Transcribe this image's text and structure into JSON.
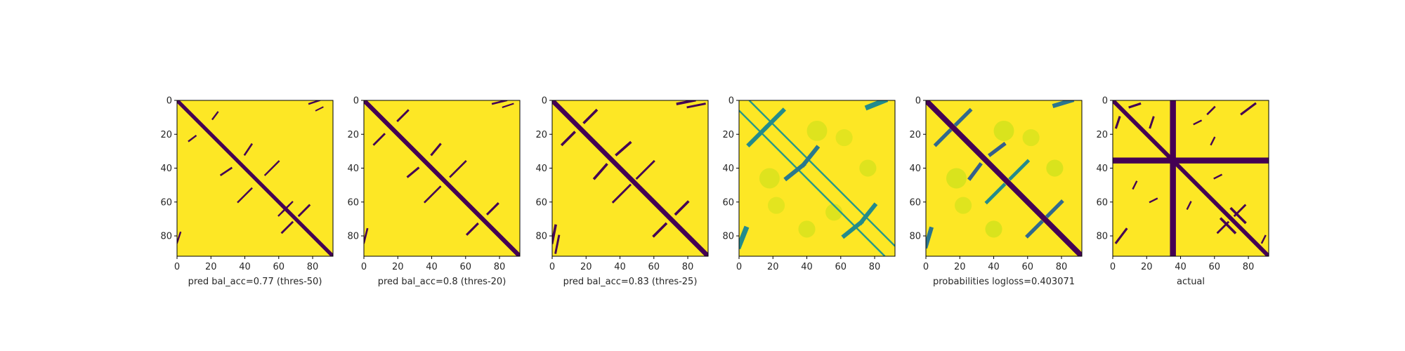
{
  "chart_data": [
    {
      "type": "heatmap",
      "kind": "binary",
      "xlabel": "pred bal_acc=0.77 (thres-50)",
      "xlim": [
        0,
        92
      ],
      "ylim": [
        92,
        0
      ],
      "xticks": [
        0,
        20,
        40,
        60,
        80
      ],
      "yticks": [
        0,
        20,
        40,
        60,
        80
      ],
      "colormap": "viridis",
      "low_color": "#440154",
      "high_color": "#fde725",
      "diagonal_width": 2.2,
      "streaks": [
        {
          "from": [
            21,
            11
          ],
          "to": [
            24,
            7
          ],
          "w": 1.0
        },
        {
          "from": [
            11,
            21
          ],
          "to": [
            7,
            24
          ],
          "w": 1.0
        },
        {
          "from": [
            40,
            32
          ],
          "to": [
            44,
            26
          ],
          "w": 1.1
        },
        {
          "from": [
            32,
            40
          ],
          "to": [
            26,
            44
          ],
          "w": 1.1
        },
        {
          "from": [
            44,
            52
          ],
          "to": [
            36,
            60
          ],
          "w": 1.0
        },
        {
          "from": [
            52,
            44
          ],
          "to": [
            60,
            36
          ],
          "w": 1.0
        },
        {
          "from": [
            66,
            62
          ],
          "to": [
            60,
            68
          ],
          "w": 1.0
        },
        {
          "from": [
            62,
            66
          ],
          "to": [
            68,
            60
          ],
          "w": 1.0
        },
        {
          "from": [
            72,
            68
          ],
          "to": [
            78,
            62
          ],
          "w": 1.2
        },
        {
          "from": [
            68,
            72
          ],
          "to": [
            62,
            78
          ],
          "w": 1.2
        },
        {
          "from": [
            78,
            2
          ],
          "to": [
            84,
            0
          ],
          "w": 1.0
        },
        {
          "from": [
            2,
            78
          ],
          "to": [
            0,
            84
          ],
          "w": 1.0
        },
        {
          "from": [
            82,
            6
          ],
          "to": [
            86,
            4
          ],
          "w": 0.8
        }
      ],
      "lines": []
    },
    {
      "type": "heatmap",
      "kind": "binary",
      "xlabel": "pred bal_acc=0.8 (thres-20)",
      "xlim": [
        0,
        92
      ],
      "ylim": [
        92,
        0
      ],
      "xticks": [
        0,
        20,
        40,
        60,
        80
      ],
      "yticks": [
        0,
        20,
        40,
        60,
        80
      ],
      "colormap": "viridis",
      "low_color": "#440154",
      "high_color": "#fde725",
      "diagonal_width": 2.6,
      "streaks": [
        {
          "from": [
            20,
            12
          ],
          "to": [
            26,
            6
          ],
          "w": 1.2
        },
        {
          "from": [
            12,
            20
          ],
          "to": [
            6,
            26
          ],
          "w": 1.2
        },
        {
          "from": [
            40,
            32
          ],
          "to": [
            45,
            26
          ],
          "w": 1.3
        },
        {
          "from": [
            32,
            40
          ],
          "to": [
            26,
            45
          ],
          "w": 1.3
        },
        {
          "from": [
            45,
            51
          ],
          "to": [
            36,
            60
          ],
          "w": 1.1
        },
        {
          "from": [
            51,
            45
          ],
          "to": [
            60,
            36
          ],
          "w": 1.1
        },
        {
          "from": [
            73,
            67
          ],
          "to": [
            79,
            61
          ],
          "w": 1.3
        },
        {
          "from": [
            67,
            73
          ],
          "to": [
            61,
            79
          ],
          "w": 1.3
        },
        {
          "from": [
            76,
            2
          ],
          "to": [
            84,
            0
          ],
          "w": 1.1
        },
        {
          "from": [
            2,
            76
          ],
          "to": [
            0,
            84
          ],
          "w": 1.1
        },
        {
          "from": [
            82,
            4
          ],
          "to": [
            88,
            2
          ],
          "w": 0.9
        }
      ],
      "lines": []
    },
    {
      "type": "heatmap",
      "kind": "binary",
      "xlabel": "pred bal_acc=0.83 (thres-25)",
      "xlim": [
        0,
        92
      ],
      "ylim": [
        92,
        0
      ],
      "xticks": [
        0,
        20,
        40,
        60,
        80
      ],
      "yticks": [
        0,
        20,
        40,
        60,
        80
      ],
      "colormap": "viridis",
      "low_color": "#440154",
      "high_color": "#fde725",
      "diagonal_width": 2.8,
      "streaks": [
        {
          "from": [
            19,
            13
          ],
          "to": [
            26,
            6
          ],
          "w": 1.5
        },
        {
          "from": [
            13,
            19
          ],
          "to": [
            6,
            26
          ],
          "w": 1.5
        },
        {
          "from": [
            38,
            32
          ],
          "to": [
            46,
            25
          ],
          "w": 1.5
        },
        {
          "from": [
            32,
            38
          ],
          "to": [
            25,
            46
          ],
          "w": 1.5
        },
        {
          "from": [
            46,
            50
          ],
          "to": [
            36,
            60
          ],
          "w": 1.2
        },
        {
          "from": [
            50,
            46
          ],
          "to": [
            60,
            36
          ],
          "w": 1.2
        },
        {
          "from": [
            73,
            67
          ],
          "to": [
            80,
            60
          ],
          "w": 1.5
        },
        {
          "from": [
            67,
            73
          ],
          "to": [
            60,
            80
          ],
          "w": 1.5
        },
        {
          "from": [
            74,
            2
          ],
          "to": [
            84,
            0
          ],
          "w": 1.5
        },
        {
          "from": [
            2,
            74
          ],
          "to": [
            0,
            84
          ],
          "w": 1.5
        },
        {
          "from": [
            80,
            4
          ],
          "to": [
            90,
            2
          ],
          "w": 1.2
        },
        {
          "from": [
            4,
            80
          ],
          "to": [
            2,
            90
          ],
          "w": 1.2
        }
      ],
      "lines": []
    },
    {
      "type": "heatmap",
      "kind": "probability",
      "xlabel": "",
      "xlim": [
        0,
        92
      ],
      "ylim": [
        92,
        0
      ],
      "xticks": [
        0,
        20,
        40,
        60,
        80
      ],
      "yticks": [
        0,
        20,
        40,
        60,
        80
      ],
      "colormap": "viridis",
      "background_color": "#fde725",
      "stops": [
        "#fde725",
        "#d2e21b",
        "#a5db36",
        "#5ec962",
        "#21918c",
        "#2c728e",
        "#3b528b"
      ],
      "diagonal_width": 0,
      "offdiagonals": [
        6,
        -6
      ],
      "offdiagonal_width": 1.0,
      "streaks": [
        {
          "from": [
            16,
            16
          ],
          "to": [
            26,
            6
          ],
          "w": 2.5,
          "p": 0.7
        },
        {
          "from": [
            16,
            16
          ],
          "to": [
            6,
            26
          ],
          "w": 2.5,
          "p": 0.7
        },
        {
          "from": [
            38,
            38
          ],
          "to": [
            46,
            28
          ],
          "w": 2.5,
          "p": 0.8
        },
        {
          "from": [
            38,
            38
          ],
          "to": [
            28,
            46
          ],
          "w": 2.5,
          "p": 0.8
        },
        {
          "from": [
            72,
            72
          ],
          "to": [
            80,
            62
          ],
          "w": 2.5,
          "p": 0.7
        },
        {
          "from": [
            72,
            72
          ],
          "to": [
            62,
            80
          ],
          "w": 2.5,
          "p": 0.7
        },
        {
          "from": [
            76,
            4
          ],
          "to": [
            86,
            0
          ],
          "w": 3.0,
          "p": 0.7
        },
        {
          "from": [
            4,
            76
          ],
          "to": [
            0,
            86
          ],
          "w": 3.0,
          "p": 0.7
        }
      ],
      "blobs": [
        {
          "x": 46,
          "y": 18,
          "r": 6,
          "p": 0.12
        },
        {
          "x": 18,
          "y": 46,
          "r": 6,
          "p": 0.12
        },
        {
          "x": 62,
          "y": 22,
          "r": 5,
          "p": 0.1
        },
        {
          "x": 22,
          "y": 62,
          "r": 5,
          "p": 0.1
        },
        {
          "x": 56,
          "y": 66,
          "r": 5,
          "p": 0.12
        },
        {
          "x": 40,
          "y": 76,
          "r": 5,
          "p": 0.12
        },
        {
          "x": 76,
          "y": 40,
          "r": 5,
          "p": 0.12
        }
      ],
      "lines": []
    },
    {
      "type": "heatmap",
      "kind": "probability",
      "xlabel": "probabilities logloss=0.403071",
      "xlim": [
        0,
        92
      ],
      "ylim": [
        92,
        0
      ],
      "xticks": [
        0,
        20,
        40,
        60,
        80
      ],
      "yticks": [
        0,
        20,
        40,
        60,
        80
      ],
      "colormap": "viridis",
      "background_color": "#fde725",
      "stops": [
        "#fde725",
        "#d2e21b",
        "#a5db36",
        "#5ec962",
        "#21918c",
        "#2c728e",
        "#3b528b",
        "#440154"
      ],
      "diagonal_width": 3.2,
      "offdiagonals": [],
      "streaks": [
        {
          "from": [
            18,
            14
          ],
          "to": [
            26,
            6
          ],
          "w": 2.2,
          "p": 0.75
        },
        {
          "from": [
            14,
            18
          ],
          "to": [
            6,
            26
          ],
          "w": 2.2,
          "p": 0.75
        },
        {
          "from": [
            38,
            32
          ],
          "to": [
            46,
            26
          ],
          "w": 2.2,
          "p": 0.8
        },
        {
          "from": [
            32,
            38
          ],
          "to": [
            26,
            46
          ],
          "w": 2.2,
          "p": 0.8
        },
        {
          "from": [
            46,
            50
          ],
          "to": [
            36,
            60
          ],
          "w": 2.0,
          "p": 0.6
        },
        {
          "from": [
            50,
            46
          ],
          "to": [
            60,
            36
          ],
          "w": 2.0,
          "p": 0.6
        },
        {
          "from": [
            72,
            68
          ],
          "to": [
            80,
            60
          ],
          "w": 2.2,
          "p": 0.75
        },
        {
          "from": [
            68,
            72
          ],
          "to": [
            60,
            80
          ],
          "w": 2.2,
          "p": 0.75
        },
        {
          "from": [
            76,
            3
          ],
          "to": [
            86,
            0
          ],
          "w": 2.5,
          "p": 0.7
        },
        {
          "from": [
            3,
            76
          ],
          "to": [
            0,
            86
          ],
          "w": 2.5,
          "p": 0.7
        }
      ],
      "blobs": [
        {
          "x": 46,
          "y": 18,
          "r": 6,
          "p": 0.12
        },
        {
          "x": 18,
          "y": 46,
          "r": 6,
          "p": 0.12
        },
        {
          "x": 62,
          "y": 22,
          "r": 5,
          "p": 0.1
        },
        {
          "x": 22,
          "y": 62,
          "r": 5,
          "p": 0.1
        },
        {
          "x": 40,
          "y": 76,
          "r": 5,
          "p": 0.12
        },
        {
          "x": 76,
          "y": 40,
          "r": 5,
          "p": 0.12
        }
      ],
      "lines": []
    },
    {
      "type": "heatmap",
      "kind": "binary",
      "xlabel": "actual",
      "xlim": [
        0,
        92
      ],
      "ylim": [
        92,
        0
      ],
      "xticks": [
        0,
        20,
        40,
        60,
        80
      ],
      "yticks": [
        0,
        20,
        40,
        60,
        80
      ],
      "colormap": "viridis",
      "low_color": "#440154",
      "high_color": "#fde725",
      "diagonal_width": 2.4,
      "streaks": [
        {
          "from": [
            10,
            4
          ],
          "to": [
            16,
            2
          ],
          "w": 1.3
        },
        {
          "from": [
            4,
            10
          ],
          "to": [
            2,
            16
          ],
          "w": 1.3
        },
        {
          "from": [
            24,
            10
          ],
          "to": [
            22,
            16
          ],
          "w": 1.2
        },
        {
          "from": [
            56,
            8
          ],
          "to": [
            60,
            4
          ],
          "w": 1.1
        },
        {
          "from": [
            76,
            8
          ],
          "to": [
            84,
            2
          ],
          "w": 1.3
        },
        {
          "from": [
            8,
            76
          ],
          "to": [
            2,
            84
          ],
          "w": 1.3
        },
        {
          "from": [
            70,
            64
          ],
          "to": [
            78,
            72
          ],
          "w": 1.5
        },
        {
          "from": [
            64,
            70
          ],
          "to": [
            72,
            78
          ],
          "w": 1.5
        },
        {
          "from": [
            72,
            68
          ],
          "to": [
            78,
            62
          ],
          "w": 1.2
        },
        {
          "from": [
            68,
            72
          ],
          "to": [
            62,
            78
          ],
          "w": 1.2
        },
        {
          "from": [
            22,
            60
          ],
          "to": [
            26,
            58
          ],
          "w": 1.0
        },
        {
          "from": [
            60,
            22
          ],
          "to": [
            58,
            26
          ],
          "w": 1.0
        },
        {
          "from": [
            12,
            52
          ],
          "to": [
            14,
            48
          ],
          "w": 1.0
        },
        {
          "from": [
            52,
            12
          ],
          "to": [
            48,
            14
          ],
          "w": 1.0
        },
        {
          "from": [
            44,
            64
          ],
          "to": [
            46,
            60
          ],
          "w": 1.0
        },
        {
          "from": [
            64,
            44
          ],
          "to": [
            60,
            46
          ],
          "w": 1.0
        },
        {
          "from": [
            88,
            84
          ],
          "to": [
            90,
            80
          ],
          "w": 1.0
        }
      ],
      "lines": [
        {
          "orientation": "vertical",
          "at": 35.5,
          "w": 3.5
        },
        {
          "orientation": "horizontal",
          "at": 35.5,
          "w": 3.5
        }
      ]
    }
  ],
  "colors": {
    "axis": "#000000",
    "text": "#262626",
    "viridis_low": "#440154",
    "viridis_high": "#fde725"
  }
}
